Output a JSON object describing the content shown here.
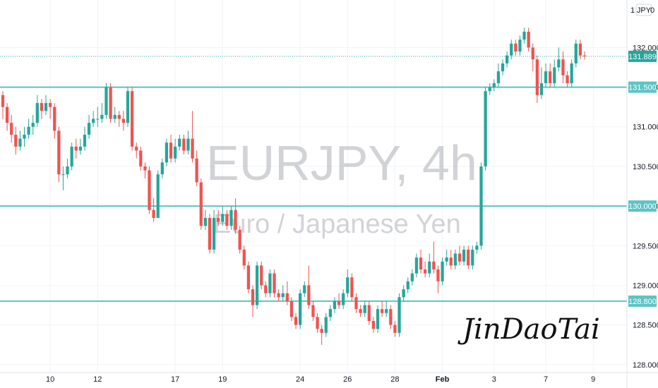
{
  "watermark": {
    "symbol": "EURJPY, 4h",
    "description": "Euro / Japanese Yen"
  },
  "signature": "JinDaoTai",
  "currency_badge": "JPY",
  "currency_badge_top": "1",
  "currency_badge_right": "0",
  "colors": {
    "up": "#26a69a",
    "down": "#ef5350",
    "level": "#5cc4c4",
    "price": "#26a69a",
    "grid": "#f0f3fa"
  },
  "chart_data": {
    "type": "candlestick",
    "symbol": "EURJPY",
    "timeframe": "4h",
    "y_axis": {
      "min": 127.9,
      "max": 132.6,
      "ticks": [
        "128.000",
        "128.500",
        "129.000",
        "129.500",
        "130.000",
        "130.500",
        "131.000",
        "131.500",
        "132.000"
      ]
    },
    "x_ticks": [
      {
        "label": "10",
        "index": 11,
        "bold": false
      },
      {
        "label": "12",
        "index": 22,
        "bold": false
      },
      {
        "label": "17",
        "index": 40,
        "bold": false
      },
      {
        "label": "19",
        "index": 51,
        "bold": false
      },
      {
        "label": "24",
        "index": 69,
        "bold": false
      },
      {
        "label": "26",
        "index": 80,
        "bold": false
      },
      {
        "label": "28",
        "index": 91,
        "bold": false
      },
      {
        "label": "Feb",
        "index": 102,
        "bold": true
      },
      {
        "label": "3",
        "index": 114,
        "bold": false
      },
      {
        "label": "7",
        "index": 126,
        "bold": false
      },
      {
        "label": "9",
        "index": 137,
        "bold": false
      }
    ],
    "horizontal_levels": [
      {
        "value": 131.5,
        "label": "131.500"
      },
      {
        "value": 130.0,
        "label": "130.000"
      },
      {
        "value": 128.8,
        "label": "128.800"
      }
    ],
    "current_price": {
      "value": 131.889,
      "label": "131.889"
    },
    "candles": [
      [
        131.4,
        131.25,
        131.45,
        131.1
      ],
      [
        131.25,
        131.05,
        131.3,
        130.95
      ],
      [
        131.05,
        130.9,
        131.15,
        130.8
      ],
      [
        130.9,
        130.75,
        131.0,
        130.65
      ],
      [
        130.75,
        130.85,
        130.95,
        130.7
      ],
      [
        130.85,
        130.9,
        131.0,
        130.75
      ],
      [
        130.9,
        131.0,
        131.1,
        130.85
      ],
      [
        131.0,
        131.05,
        131.15,
        130.9
      ],
      [
        131.05,
        131.3,
        131.4,
        131.0
      ],
      [
        131.3,
        131.2,
        131.35,
        131.1
      ],
      [
        131.2,
        131.3,
        131.4,
        131.15
      ],
      [
        131.3,
        131.25,
        131.35,
        131.1
      ],
      [
        131.25,
        130.95,
        131.3,
        130.85
      ],
      [
        130.95,
        130.4,
        131.0,
        130.3
      ],
      [
        130.4,
        130.4,
        130.5,
        130.2
      ],
      [
        130.4,
        130.5,
        130.6,
        130.35
      ],
      [
        130.5,
        130.75,
        130.8,
        130.45
      ],
      [
        130.75,
        130.7,
        130.85,
        130.6
      ],
      [
        130.7,
        130.75,
        130.85,
        130.65
      ],
      [
        130.75,
        130.9,
        131.0,
        130.7
      ],
      [
        130.9,
        131.05,
        131.15,
        130.85
      ],
      [
        131.05,
        131.1,
        131.2,
        131.0
      ],
      [
        131.1,
        131.1,
        131.25,
        131.0
      ],
      [
        131.1,
        131.15,
        131.3,
        131.05
      ],
      [
        131.15,
        131.5,
        131.55,
        131.1
      ],
      [
        131.5,
        131.1,
        131.55,
        131.05
      ],
      [
        131.1,
        131.15,
        131.25,
        131.05
      ],
      [
        131.15,
        131.1,
        131.2,
        131.0
      ],
      [
        131.1,
        131.05,
        131.2,
        130.95
      ],
      [
        131.05,
        131.45,
        131.5,
        131.0
      ],
      [
        131.45,
        130.75,
        131.5,
        130.7
      ],
      [
        130.75,
        130.7,
        130.8,
        130.6
      ],
      [
        130.7,
        130.5,
        130.75,
        130.45
      ],
      [
        130.5,
        130.45,
        130.55,
        130.35
      ],
      [
        130.45,
        129.95,
        130.5,
        129.9
      ],
      [
        129.95,
        129.85,
        130.1,
        129.8
      ],
      [
        129.85,
        130.4,
        130.45,
        129.85
      ],
      [
        130.4,
        130.55,
        130.6,
        130.35
      ],
      [
        130.55,
        130.8,
        130.85,
        130.5
      ],
      [
        130.8,
        130.6,
        130.9,
        130.55
      ],
      [
        130.6,
        130.75,
        130.85,
        130.55
      ],
      [
        130.75,
        130.85,
        130.9,
        130.7
      ],
      [
        130.85,
        130.7,
        130.9,
        130.65
      ],
      [
        130.7,
        130.85,
        130.95,
        130.65
      ],
      [
        130.85,
        130.6,
        131.2,
        130.55
      ],
      [
        130.6,
        130.3,
        130.7,
        130.25
      ],
      [
        130.3,
        129.75,
        130.35,
        129.7
      ],
      [
        129.75,
        129.85,
        129.95,
        129.7
      ],
      [
        129.85,
        129.45,
        129.9,
        129.4
      ],
      [
        129.45,
        129.85,
        129.95,
        129.4
      ],
      [
        129.85,
        129.8,
        129.95,
        129.75
      ],
      [
        129.8,
        129.9,
        130.0,
        129.75
      ],
      [
        129.9,
        129.75,
        129.95,
        129.7
      ],
      [
        129.75,
        129.95,
        130.0,
        129.7
      ],
      [
        129.95,
        129.7,
        130.1,
        129.65
      ],
      [
        129.7,
        129.45,
        129.75,
        129.4
      ],
      [
        129.45,
        129.25,
        129.5,
        129.2
      ],
      [
        129.25,
        128.95,
        129.3,
        128.9
      ],
      [
        128.95,
        128.75,
        129.0,
        128.6
      ],
      [
        128.75,
        129.25,
        129.3,
        128.7
      ],
      [
        129.25,
        129.0,
        129.3,
        128.95
      ],
      [
        129.0,
        128.9,
        129.05,
        128.85
      ],
      [
        128.9,
        129.15,
        129.2,
        128.85
      ],
      [
        129.15,
        128.9,
        129.2,
        128.85
      ],
      [
        128.9,
        128.85,
        128.95,
        128.8
      ],
      [
        128.85,
        128.9,
        129.0,
        128.8
      ],
      [
        128.9,
        128.8,
        129.05,
        128.75
      ],
      [
        128.8,
        128.6,
        128.85,
        128.55
      ],
      [
        128.6,
        128.5,
        128.65,
        128.45
      ],
      [
        128.5,
        128.9,
        128.95,
        128.45
      ],
      [
        128.9,
        129.0,
        129.05,
        128.85
      ],
      [
        129.0,
        128.75,
        129.25,
        128.7
      ],
      [
        128.75,
        128.6,
        128.8,
        128.55
      ],
      [
        128.6,
        128.45,
        128.65,
        128.4
      ],
      [
        128.45,
        128.4,
        128.5,
        128.25
      ],
      [
        128.4,
        128.6,
        128.65,
        128.35
      ],
      [
        128.6,
        128.7,
        128.75,
        128.55
      ],
      [
        128.7,
        128.8,
        128.85,
        128.65
      ],
      [
        128.8,
        128.75,
        128.9,
        128.7
      ],
      [
        128.75,
        128.9,
        128.95,
        128.7
      ],
      [
        128.9,
        129.1,
        129.2,
        128.85
      ],
      [
        129.1,
        128.85,
        129.15,
        128.8
      ],
      [
        128.85,
        128.7,
        128.9,
        128.65
      ],
      [
        128.7,
        128.65,
        128.75,
        128.6
      ],
      [
        128.65,
        128.75,
        128.8,
        128.6
      ],
      [
        128.75,
        128.55,
        128.8,
        128.5
      ],
      [
        128.55,
        128.45,
        128.6,
        128.4
      ],
      [
        128.45,
        128.7,
        128.75,
        128.4
      ],
      [
        128.7,
        128.65,
        128.8,
        128.6
      ],
      [
        128.65,
        128.7,
        128.8,
        128.6
      ],
      [
        128.7,
        128.5,
        128.75,
        128.45
      ],
      [
        128.5,
        128.4,
        128.55,
        128.35
      ],
      [
        128.4,
        128.85,
        128.9,
        128.35
      ],
      [
        128.85,
        128.95,
        129.0,
        128.8
      ],
      [
        128.95,
        129.05,
        129.1,
        128.9
      ],
      [
        129.05,
        129.15,
        129.2,
        129.0
      ],
      [
        129.15,
        129.35,
        129.4,
        129.1
      ],
      [
        129.35,
        129.2,
        129.45,
        129.15
      ],
      [
        129.2,
        129.15,
        129.3,
        129.1
      ],
      [
        129.15,
        129.3,
        129.4,
        129.1
      ],
      [
        129.3,
        129.2,
        129.55,
        129.15
      ],
      [
        129.2,
        129.05,
        129.25,
        128.9
      ],
      [
        129.05,
        129.3,
        129.35,
        129.0
      ],
      [
        129.3,
        129.35,
        129.45,
        129.25
      ],
      [
        129.35,
        129.25,
        129.45,
        129.2
      ],
      [
        129.25,
        129.4,
        129.45,
        129.2
      ],
      [
        129.4,
        129.3,
        129.5,
        129.25
      ],
      [
        129.3,
        129.45,
        129.5,
        129.25
      ],
      [
        129.45,
        129.25,
        129.5,
        129.2
      ],
      [
        129.25,
        129.45,
        129.5,
        129.2
      ],
      [
        129.45,
        129.5,
        129.55,
        129.4
      ],
      [
        129.5,
        130.5,
        130.55,
        129.45
      ],
      [
        130.5,
        131.45,
        131.5,
        130.45
      ],
      [
        131.45,
        131.5,
        131.55,
        131.4
      ],
      [
        131.5,
        131.55,
        131.6,
        131.45
      ],
      [
        131.55,
        131.7,
        131.8,
        131.5
      ],
      [
        131.7,
        131.8,
        131.85,
        131.65
      ],
      [
        131.8,
        131.9,
        131.95,
        131.75
      ],
      [
        131.9,
        132.05,
        132.1,
        131.85
      ],
      [
        132.05,
        131.95,
        132.1,
        131.9
      ],
      [
        131.95,
        132.1,
        132.15,
        131.9
      ],
      [
        132.1,
        132.2,
        132.25,
        132.05
      ],
      [
        132.2,
        132.0,
        132.25,
        131.95
      ],
      [
        132.0,
        131.85,
        132.05,
        131.7
      ],
      [
        131.85,
        131.4,
        131.9,
        131.3
      ],
      [
        131.4,
        131.55,
        131.75,
        131.35
      ],
      [
        131.55,
        131.7,
        131.8,
        131.5
      ],
      [
        131.7,
        131.55,
        131.8,
        131.5
      ],
      [
        131.55,
        131.75,
        131.85,
        131.5
      ],
      [
        131.75,
        131.85,
        132.0,
        131.7
      ],
      [
        131.85,
        131.65,
        131.95,
        131.55
      ],
      [
        131.65,
        131.55,
        131.7,
        131.5
      ],
      [
        131.55,
        131.8,
        131.85,
        131.5
      ],
      [
        131.8,
        132.05,
        132.1,
        131.75
      ],
      [
        132.05,
        131.9,
        132.1,
        131.85
      ],
      [
        131.9,
        131.889,
        131.95,
        131.85
      ]
    ]
  }
}
